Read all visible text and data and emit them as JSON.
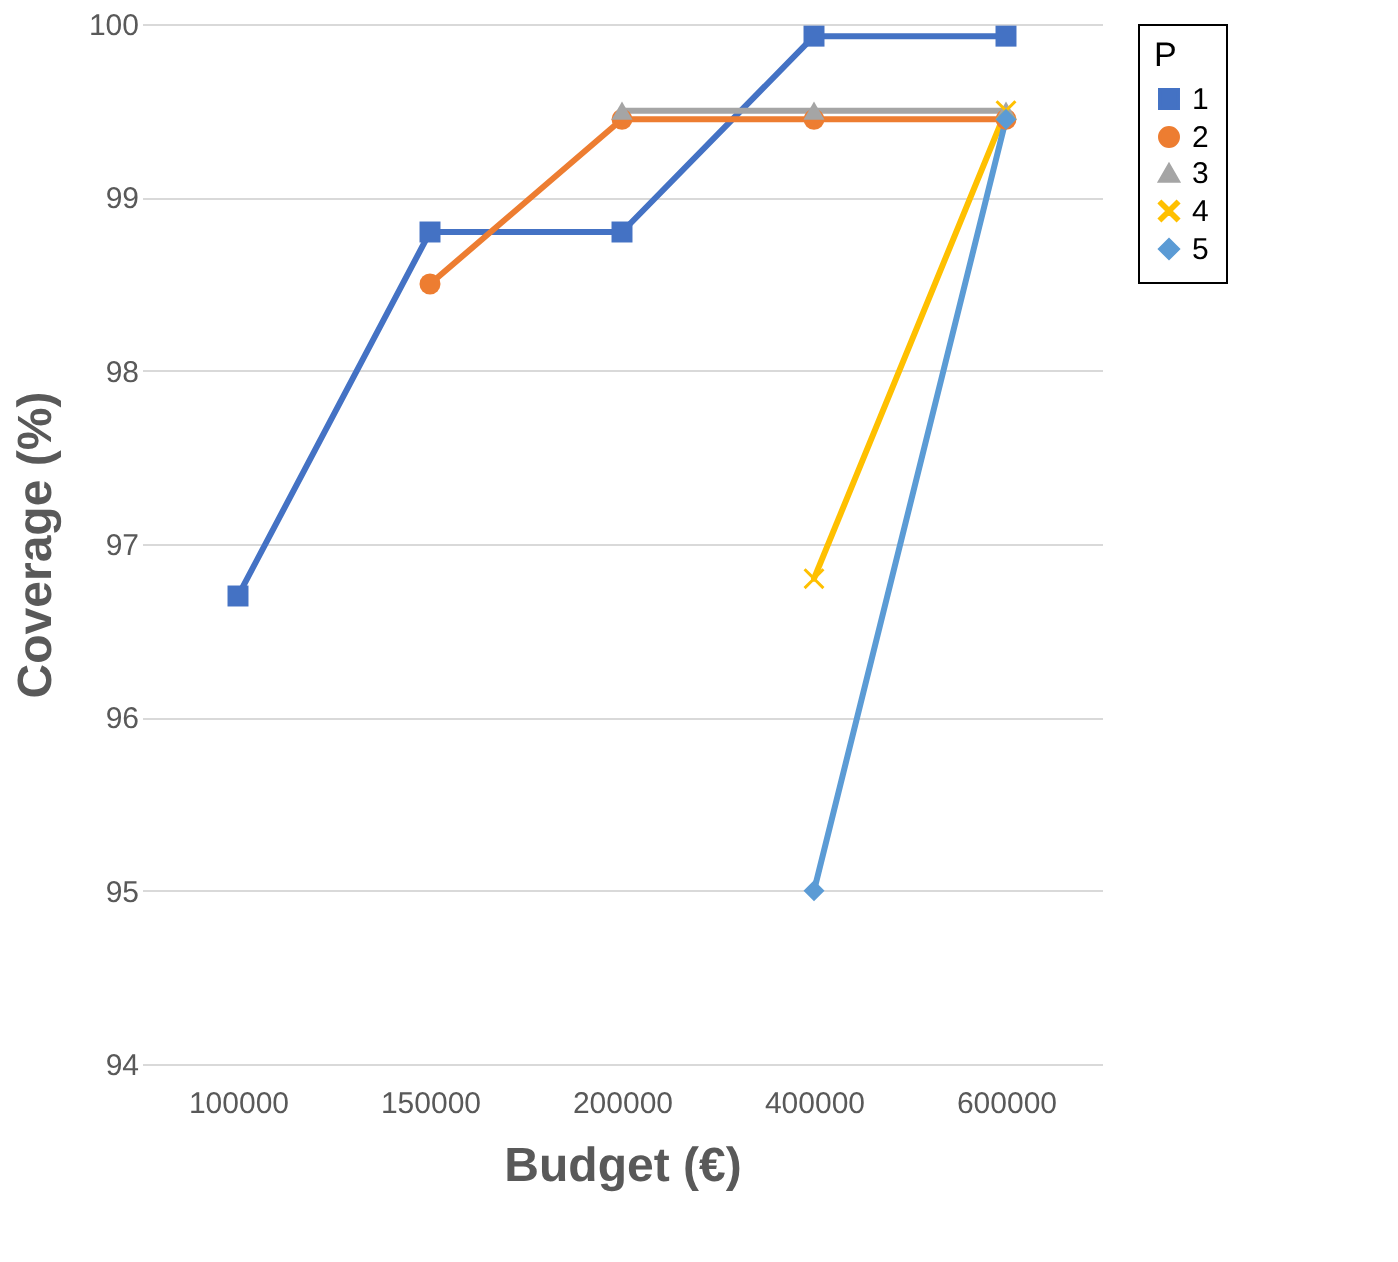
{
  "chart_data": {
    "type": "line",
    "xlabel": "Budget (€)",
    "ylabel": "Coverage (%)",
    "legend_title": "P",
    "categories": [
      "100000",
      "150000",
      "200000",
      "400000",
      "600000"
    ],
    "series": [
      {
        "name": "1",
        "color": "#4472c4",
        "marker": "square",
        "values": [
          96.7,
          98.8,
          98.8,
          99.93,
          99.93
        ]
      },
      {
        "name": "2",
        "color": "#ed7d31",
        "marker": "circle",
        "values": [
          null,
          98.5,
          99.45,
          99.45,
          99.45
        ]
      },
      {
        "name": "3",
        "color": "#a5a5a5",
        "marker": "triangle",
        "values": [
          null,
          null,
          99.5,
          99.5,
          99.5
        ]
      },
      {
        "name": "4",
        "color": "#ffc000",
        "marker": "cross",
        "values": [
          null,
          null,
          null,
          96.8,
          99.5
        ]
      },
      {
        "name": "5",
        "color": "#5b9bd5",
        "marker": "diamond",
        "values": [
          null,
          null,
          null,
          95.0,
          99.45
        ]
      }
    ],
    "ylim": [
      94,
      100
    ],
    "yticks": [
      94,
      95,
      96,
      97,
      98,
      99,
      100
    ],
    "grid": "y",
    "legend": "right"
  }
}
